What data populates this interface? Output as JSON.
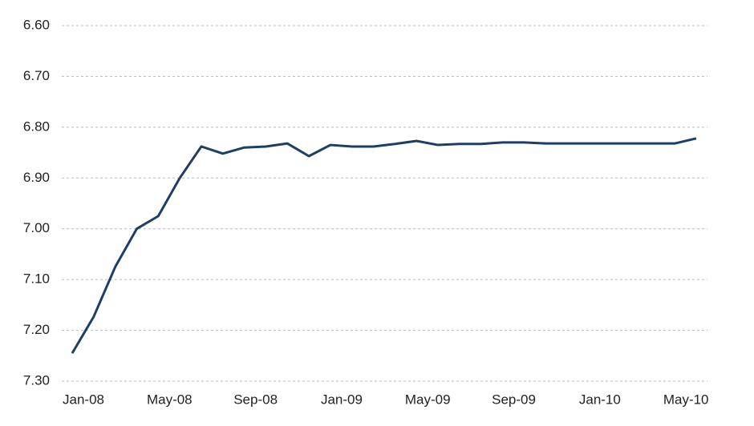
{
  "chart_data": {
    "type": "line",
    "categories": [
      "Jan-08",
      null,
      null,
      null,
      "May-08",
      null,
      null,
      null,
      "Sep-08",
      null,
      null,
      null,
      "Jan-09",
      null,
      null,
      null,
      "May-09",
      null,
      null,
      null,
      "Sep-09",
      null,
      null,
      null,
      "Jan-10",
      null,
      null,
      null,
      "May-10",
      null
    ],
    "values": [
      7.245,
      7.173,
      7.075,
      7.0,
      6.975,
      6.9,
      6.838,
      6.852,
      6.84,
      6.838,
      6.832,
      6.857,
      6.835,
      6.838,
      6.838,
      6.833,
      6.827,
      6.835,
      6.833,
      6.833,
      6.83,
      6.83,
      6.832,
      6.832,
      6.832,
      6.832,
      6.832,
      6.832,
      6.832,
      6.822
    ],
    "color": "#1b3f66",
    "ylim": [
      6.6,
      7.3
    ],
    "inverted": true,
    "yticks": [
      {
        "value": 6.6,
        "label": "6.60"
      },
      {
        "value": 6.7,
        "label": "6.70"
      },
      {
        "value": 6.8,
        "label": "6.80"
      },
      {
        "value": 6.9,
        "label": "6.90"
      },
      {
        "value": 7.0,
        "label": "7.00"
      },
      {
        "value": 7.1,
        "label": "7.10"
      },
      {
        "value": 7.2,
        "label": "7.20"
      },
      {
        "value": 7.3,
        "label": "7.30"
      }
    ],
    "grid": true
  }
}
